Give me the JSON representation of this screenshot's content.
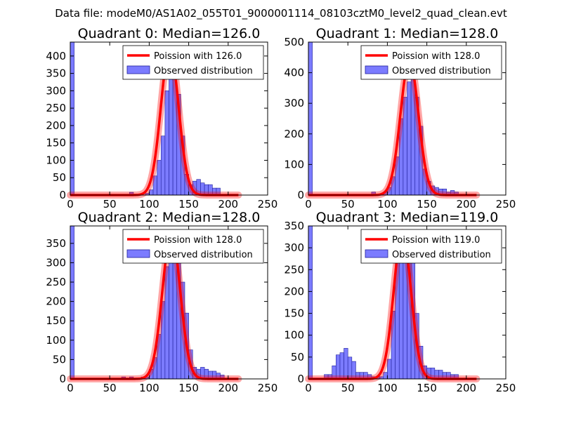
{
  "figure": {
    "suptitle": "Data file: modeM0/AS1A02_055T01_9000001114_08103cztM0_level2_quad_clean.evt"
  },
  "chart_data": [
    {
      "type": "bar",
      "title": "Quadrant 0: Median=126.0",
      "xlim": [
        0,
        250
      ],
      "ylim": [
        0,
        440
      ],
      "xticks": [
        0,
        50,
        100,
        150,
        200,
        250
      ],
      "yticks": [
        0,
        50,
        100,
        150,
        200,
        250,
        300,
        350,
        400
      ],
      "bin_width": 5,
      "bins": [
        {
          "x": 0,
          "count": 440
        },
        {
          "x": 75,
          "count": 8
        },
        {
          "x": 95,
          "count": 5
        },
        {
          "x": 100,
          "count": 15
        },
        {
          "x": 105,
          "count": 55
        },
        {
          "x": 110,
          "count": 100
        },
        {
          "x": 115,
          "count": 170
        },
        {
          "x": 120,
          "count": 300
        },
        {
          "x": 125,
          "count": 390
        },
        {
          "x": 130,
          "count": 365
        },
        {
          "x": 135,
          "count": 290
        },
        {
          "x": 140,
          "count": 170
        },
        {
          "x": 145,
          "count": 60
        },
        {
          "x": 150,
          "count": 30
        },
        {
          "x": 155,
          "count": 40
        },
        {
          "x": 160,
          "count": 45
        },
        {
          "x": 165,
          "count": 35
        },
        {
          "x": 170,
          "count": 30
        },
        {
          "x": 175,
          "count": 30
        },
        {
          "x": 180,
          "count": 20
        },
        {
          "x": 185,
          "count": 20
        }
      ],
      "series": [
        {
          "name": "Poission with 126.0",
          "type": "line",
          "mean": 126.0,
          "peak": 420,
          "color": "#ff0000"
        },
        {
          "name": "Observed distribution",
          "type": "hist",
          "color": "#7b7bff"
        }
      ],
      "legend_position": "upper-right"
    },
    {
      "type": "bar",
      "title": "Quadrant 1: Median=128.0",
      "xlim": [
        0,
        250
      ],
      "ylim": [
        0,
        500
      ],
      "xticks": [
        0,
        50,
        100,
        150,
        200,
        250
      ],
      "yticks": [
        0,
        100,
        200,
        300,
        400,
        500
      ],
      "bin_width": 5,
      "bins": [
        {
          "x": 0,
          "count": 500
        },
        {
          "x": 80,
          "count": 10
        },
        {
          "x": 95,
          "count": 10
        },
        {
          "x": 100,
          "count": 25
        },
        {
          "x": 105,
          "count": 60
        },
        {
          "x": 110,
          "count": 125
        },
        {
          "x": 115,
          "count": 250
        },
        {
          "x": 120,
          "count": 320
        },
        {
          "x": 125,
          "count": 370
        },
        {
          "x": 130,
          "count": 410
        },
        {
          "x": 135,
          "count": 320
        },
        {
          "x": 140,
          "count": 225
        },
        {
          "x": 145,
          "count": 85
        },
        {
          "x": 150,
          "count": 45
        },
        {
          "x": 155,
          "count": 30
        },
        {
          "x": 160,
          "count": 25
        },
        {
          "x": 165,
          "count": 20
        },
        {
          "x": 170,
          "count": 20
        },
        {
          "x": 175,
          "count": 10
        },
        {
          "x": 180,
          "count": 15
        },
        {
          "x": 185,
          "count": 10
        }
      ],
      "series": [
        {
          "name": "Poission with 128.0",
          "type": "line",
          "mean": 128.0,
          "peak": 440,
          "color": "#ff0000"
        },
        {
          "name": "Observed distribution",
          "type": "hist",
          "color": "#7b7bff"
        }
      ],
      "legend_position": "upper-right"
    },
    {
      "type": "bar",
      "title": "Quadrant 2: Median=128.0",
      "xlim": [
        0,
        250
      ],
      "ylim": [
        0,
        395
      ],
      "xticks": [
        0,
        50,
        100,
        150,
        200,
        250
      ],
      "yticks": [
        0,
        50,
        100,
        150,
        200,
        250,
        300,
        350
      ],
      "bin_width": 5,
      "bins": [
        {
          "x": 0,
          "count": 395
        },
        {
          "x": 65,
          "count": 5
        },
        {
          "x": 75,
          "count": 5
        },
        {
          "x": 90,
          "count": 5
        },
        {
          "x": 95,
          "count": 5
        },
        {
          "x": 100,
          "count": 25
        },
        {
          "x": 105,
          "count": 55
        },
        {
          "x": 110,
          "count": 115
        },
        {
          "x": 115,
          "count": 200
        },
        {
          "x": 120,
          "count": 290
        },
        {
          "x": 125,
          "count": 370
        },
        {
          "x": 130,
          "count": 355
        },
        {
          "x": 135,
          "count": 320
        },
        {
          "x": 140,
          "count": 250
        },
        {
          "x": 145,
          "count": 170
        },
        {
          "x": 150,
          "count": 75
        },
        {
          "x": 155,
          "count": 30
        },
        {
          "x": 160,
          "count": 25
        },
        {
          "x": 165,
          "count": 30
        },
        {
          "x": 170,
          "count": 25
        },
        {
          "x": 175,
          "count": 20
        },
        {
          "x": 180,
          "count": 20
        },
        {
          "x": 185,
          "count": 15
        },
        {
          "x": 190,
          "count": 10
        }
      ],
      "series": [
        {
          "name": "Poission with 128.0",
          "type": "line",
          "mean": 128.0,
          "peak": 375,
          "color": "#ff0000"
        },
        {
          "name": "Observed distribution",
          "type": "hist",
          "color": "#7b7bff"
        }
      ],
      "legend_position": "upper-right"
    },
    {
      "type": "bar",
      "title": "Quadrant 3: Median=119.0",
      "xlim": [
        0,
        250
      ],
      "ylim": [
        0,
        350
      ],
      "xticks": [
        0,
        50,
        100,
        150,
        200,
        250
      ],
      "yticks": [
        0,
        50,
        100,
        150,
        200,
        250,
        300,
        350
      ],
      "bin_width": 5,
      "bins": [
        {
          "x": 0,
          "count": 350
        },
        {
          "x": 20,
          "count": 10
        },
        {
          "x": 25,
          "count": 10
        },
        {
          "x": 30,
          "count": 30
        },
        {
          "x": 35,
          "count": 55
        },
        {
          "x": 40,
          "count": 60
        },
        {
          "x": 45,
          "count": 70
        },
        {
          "x": 50,
          "count": 50
        },
        {
          "x": 55,
          "count": 40
        },
        {
          "x": 60,
          "count": 15
        },
        {
          "x": 65,
          "count": 15
        },
        {
          "x": 70,
          "count": 15
        },
        {
          "x": 75,
          "count": 10
        },
        {
          "x": 80,
          "count": 5
        },
        {
          "x": 85,
          "count": 5
        },
        {
          "x": 90,
          "count": 5
        },
        {
          "x": 95,
          "count": 15
        },
        {
          "x": 100,
          "count": 45
        },
        {
          "x": 105,
          "count": 155
        },
        {
          "x": 110,
          "count": 270
        },
        {
          "x": 115,
          "count": 335
        },
        {
          "x": 120,
          "count": 315
        },
        {
          "x": 125,
          "count": 270
        },
        {
          "x": 130,
          "count": 275
        },
        {
          "x": 135,
          "count": 150
        },
        {
          "x": 140,
          "count": 75
        },
        {
          "x": 145,
          "count": 30
        },
        {
          "x": 150,
          "count": 25
        },
        {
          "x": 155,
          "count": 25
        },
        {
          "x": 160,
          "count": 20
        },
        {
          "x": 165,
          "count": 20
        },
        {
          "x": 170,
          "count": 15
        },
        {
          "x": 175,
          "count": 15
        },
        {
          "x": 180,
          "count": 10
        },
        {
          "x": 185,
          "count": 10
        }
      ],
      "series": [
        {
          "name": "Poission with 119.0",
          "type": "line",
          "mean": 119.0,
          "peak": 335,
          "color": "#ff0000"
        },
        {
          "name": "Observed distribution",
          "type": "hist",
          "color": "#7b7bff"
        }
      ],
      "legend_position": "upper-right"
    }
  ]
}
